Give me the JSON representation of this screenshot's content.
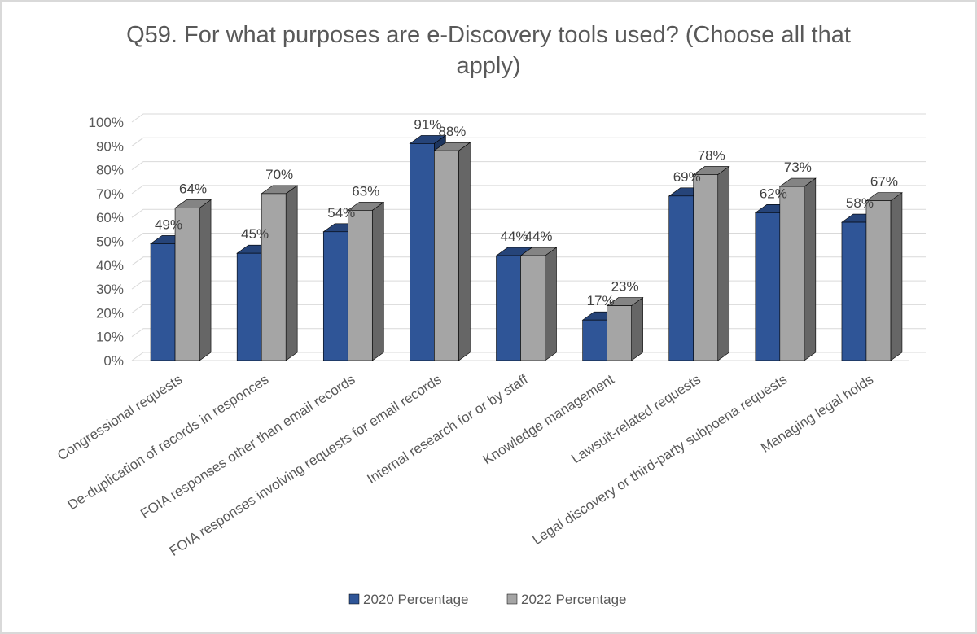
{
  "chart_data": {
    "type": "bar",
    "title": "Q59. For what purposes are e-Discovery tools used? (Choose all that\napply)",
    "categories": [
      "Congressional requests",
      "De-duplication of records in responces",
      "FOIA responses other than email records",
      "FOIA responses involving requests for email records",
      "Internal research for or by staff",
      "Knowledge management",
      "Lawsuit-related requests",
      "Legal discovery or third-party subpoena requests",
      "Managing legal holds"
    ],
    "series": [
      {
        "name": "2020 Percentage",
        "color": "#2f5597",
        "values": [
          49,
          45,
          54,
          91,
          44,
          17,
          69,
          62,
          58
        ],
        "labels": [
          "49%",
          "45%",
          "54%",
          "91%",
          "44%",
          "17%",
          "69%",
          "62%",
          "58%"
        ]
      },
      {
        "name": "2022 Percentage",
        "color": "#a5a5a5",
        "values": [
          64,
          70,
          63,
          88,
          44,
          23,
          78,
          73,
          67
        ],
        "labels": [
          "64%",
          "70%",
          "63%",
          "88%",
          "44%",
          "23%",
          "78%",
          "73%",
          "67%"
        ]
      }
    ],
    "yticks": [
      "0%",
      "10%",
      "20%",
      "30%",
      "40%",
      "50%",
      "60%",
      "70%",
      "80%",
      "90%",
      "100%"
    ],
    "ylim": [
      0,
      100
    ],
    "grid": true,
    "style": "3d-clustered-column",
    "legend_position": "bottom"
  }
}
